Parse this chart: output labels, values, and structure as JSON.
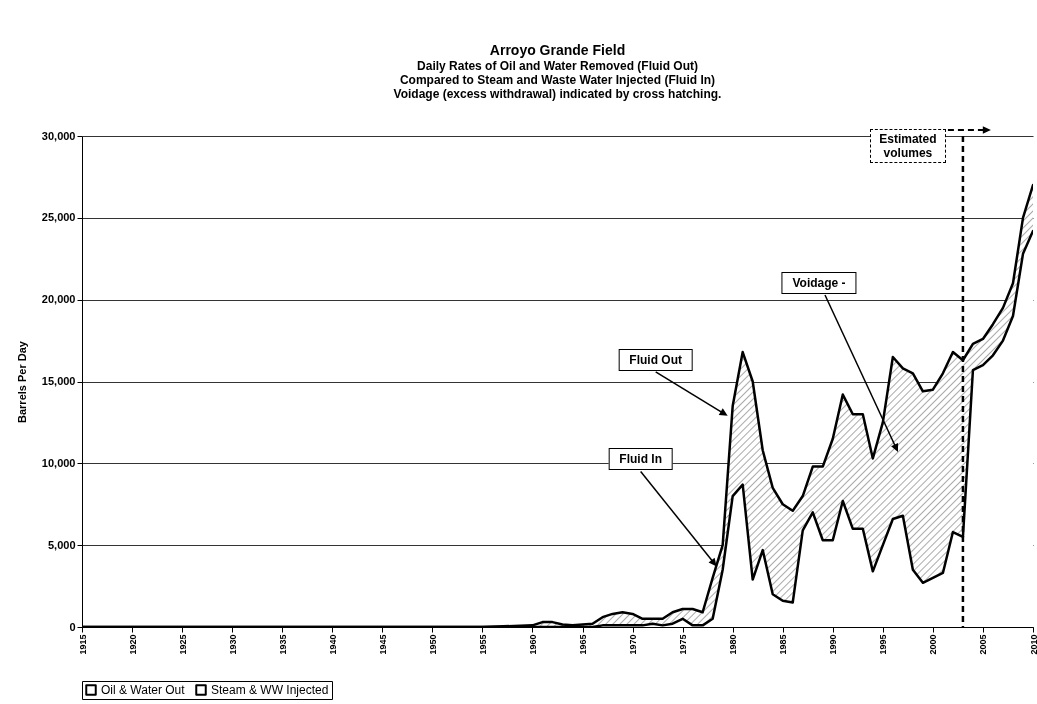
{
  "chart_data": {
    "type": "area",
    "title": "Arroyo Grande Field",
    "subtitle": "Daily Rates of Oil and Water Removed (Fluid Out)\nCompared to Steam and Waste Water Injected (Fluid In)\nVoidage (excess withdrawal) indicated by cross hatching.",
    "ylabel": "Barrels Per Day",
    "x": [
      1915,
      1955,
      1960,
      1961,
      1962,
      1963,
      1964,
      1965,
      1966,
      1967,
      1968,
      1969,
      1970,
      1971,
      1972,
      1973,
      1974,
      1975,
      1976,
      1977,
      1978,
      1979,
      1980,
      1981,
      1982,
      1983,
      1984,
      1985,
      1986,
      1987,
      1988,
      1989,
      1990,
      1991,
      1992,
      1993,
      1994,
      1995,
      1996,
      1997,
      1998,
      1999,
      2000,
      2001,
      2002,
      2003,
      2004,
      2005,
      2006,
      2007,
      2008,
      2009,
      2010
    ],
    "series": [
      {
        "name": "Oil & Water Out",
        "color": "#000000",
        "values": [
          0,
          0,
          100,
          300,
          300,
          150,
          100,
          150,
          200,
          600,
          800,
          900,
          800,
          500,
          500,
          500,
          900,
          1100,
          1100,
          900,
          3000,
          5000,
          13500,
          16800,
          15000,
          10800,
          8500,
          7500,
          7100,
          8000,
          9800,
          9800,
          11500,
          14200,
          13000,
          13000,
          10300,
          12500,
          16500,
          15800,
          15500,
          14400,
          14500,
          15500,
          16800,
          16300,
          17300,
          17600,
          18500,
          19500,
          21000,
          25000,
          27000
        ]
      },
      {
        "name": "Steam & WW Injected",
        "color": "#000000",
        "values": [
          0,
          0,
          0,
          0,
          0,
          0,
          0,
          0,
          0,
          100,
          100,
          100,
          100,
          100,
          200,
          100,
          200,
          500,
          100,
          100,
          500,
          3500,
          8000,
          8700,
          2900,
          4700,
          2000,
          1600,
          1500,
          5900,
          7000,
          5300,
          5300,
          7700,
          6000,
          6000,
          3400,
          5000,
          6600,
          6800,
          3500,
          2700,
          3000,
          3300,
          5800,
          5500,
          15700,
          16000,
          16600,
          17500,
          19000,
          22800,
          24200
        ]
      }
    ],
    "xlim": [
      1915,
      2010
    ],
    "xticks": [
      1915,
      1920,
      1925,
      1930,
      1935,
      1940,
      1945,
      1950,
      1955,
      1960,
      1965,
      1970,
      1975,
      1980,
      1985,
      1990,
      1995,
      2000,
      2005,
      2010
    ],
    "ylim": [
      0,
      30000
    ],
    "yticks": [
      {
        "value": 0,
        "label": "0"
      },
      {
        "value": 5000,
        "label": "5,000"
      },
      {
        "value": 10000,
        "label": "10,000"
      },
      {
        "value": 15000,
        "label": "15,000"
      },
      {
        "value": 20000,
        "label": "20,000"
      },
      {
        "value": 25000,
        "label": "25,000"
      },
      {
        "value": 30000,
        "label": "30,000"
      }
    ],
    "grid": "y",
    "legend": "bottom",
    "ref_lines": [
      {
        "axis": "x",
        "value": 2003,
        "label": "Estimated volumes",
        "color": "#000000",
        "line_style": "dashed"
      }
    ],
    "annotations": [
      {
        "text": "Fluid Out",
        "x": 1979.5,
        "y": 12900
      },
      {
        "text": "Fluid In",
        "x": 1978.4,
        "y": 3700
      },
      "Voidage -"
    ]
  }
}
